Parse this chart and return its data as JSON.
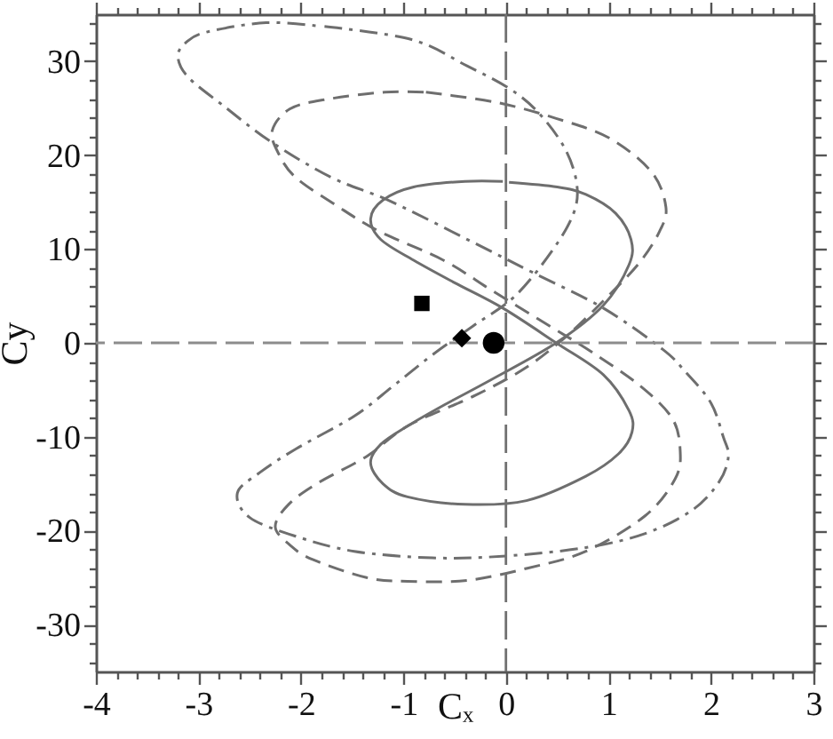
{
  "chart_data": {
    "type": "line",
    "xlabel": "Cₓ",
    "ylabel": "Cy",
    "xlim": [
      -4,
      3
    ],
    "ylim": [
      -35,
      35
    ],
    "xticks": [
      -4,
      {
        "value": -3.8,
        "label": null
      },
      {
        "value": -3.6,
        "label": null
      },
      {
        "value": -3.4,
        "label": null
      },
      {
        "value": -3.2,
        "label": null
      },
      -3,
      {
        "value": -2.8,
        "label": null
      },
      {
        "value": -2.6,
        "label": null
      },
      {
        "value": -2.4,
        "label": null
      },
      {
        "value": -2.2,
        "label": null
      },
      -2,
      {
        "value": -1.8,
        "label": null
      },
      {
        "value": -1.6,
        "label": null
      },
      {
        "value": -1.4,
        "label": null
      },
      {
        "value": -1.2,
        "label": null
      },
      -1,
      {
        "value": -0.8,
        "label": null
      },
      {
        "value": -0.6,
        "label": null
      },
      {
        "value": -0.4,
        "label": null
      },
      {
        "value": -0.2,
        "label": null
      },
      0,
      {
        "value": 0.2,
        "label": null
      },
      {
        "value": 0.4,
        "label": null
      },
      {
        "value": 0.6,
        "label": null
      },
      {
        "value": 0.8,
        "label": null
      },
      1,
      {
        "value": 1.2,
        "label": null
      },
      {
        "value": 1.4,
        "label": null
      },
      {
        "value": 1.6,
        "label": null
      },
      {
        "value": 1.8,
        "label": null
      },
      2,
      {
        "value": 2.2,
        "label": null
      },
      {
        "value": 2.4,
        "label": null
      },
      {
        "value": 2.6,
        "label": null
      },
      {
        "value": 2.8,
        "label": null
      },
      3
    ],
    "yticks": [
      {
        "value": -34,
        "label": null
      },
      {
        "value": -32,
        "label": null
      },
      -30,
      {
        "value": -28,
        "label": null
      },
      {
        "value": -26,
        "label": null
      },
      {
        "value": -24,
        "label": null
      },
      {
        "value": -22,
        "label": null
      },
      -20,
      {
        "value": -18,
        "label": null
      },
      {
        "value": -16,
        "label": null
      },
      {
        "value": -14,
        "label": null
      },
      {
        "value": -12,
        "label": null
      },
      -10,
      {
        "value": -8,
        "label": null
      },
      {
        "value": -6,
        "label": null
      },
      {
        "value": -4,
        "label": null
      },
      {
        "value": -2,
        "label": null
      },
      0,
      {
        "value": 2,
        "label": null
      },
      {
        "value": 4,
        "label": null
      },
      {
        "value": 6,
        "label": null
      },
      {
        "value": 8,
        "label": null
      },
      10,
      {
        "value": 12,
        "label": null
      },
      {
        "value": 14,
        "label": null
      },
      {
        "value": 16,
        "label": null
      },
      {
        "value": 18,
        "label": null
      },
      20,
      {
        "value": 22,
        "label": null
      },
      {
        "value": 24,
        "label": null
      },
      {
        "value": 26,
        "label": null
      },
      {
        "value": 28,
        "label": null
      },
      30,
      {
        "value": 32,
        "label": null
      },
      {
        "value": 34,
        "label": null
      }
    ],
    "series": [
      {
        "color": "#6e6e6e",
        "line_style": "solid",
        "x": [
          0.03,
          0.5,
          0.78,
          1.07,
          1.22,
          1.2,
          0.95,
          0.49,
          -0.14,
          -0.6,
          -0.95,
          -1.22,
          -1.32,
          -1.2,
          -0.96,
          -0.4,
          0.2,
          0.78,
          1.1,
          1.23,
          1.2,
          0.95,
          0.49,
          -0.03,
          -0.5,
          -0.9,
          -1.22,
          -1.32,
          -1.2,
          -0.9,
          -0.4,
          -0.03
        ],
        "values": [
          17.1,
          16.6,
          15.8,
          13.8,
          11.0,
          8.3,
          4.0,
          0,
          -3.9,
          -6.6,
          -8.8,
          -10.8,
          -12.8,
          -15.0,
          -16.4,
          -17.2,
          -16.8,
          -14.2,
          -11.8,
          -9.5,
          -7.2,
          -3.4,
          0,
          3.7,
          6.4,
          8.8,
          11.0,
          13.2,
          15.2,
          16.6,
          17.2,
          17.2
        ]
      },
      {
        "color": "#6e6e6e",
        "line_style": "dashed",
        "x": [
          -0.78,
          -0.09,
          0.49,
          1.01,
          1.42,
          1.56,
          1.5,
          1.3,
          0.98,
          0.6,
          0.2,
          -0.3,
          -0.95,
          -1.36,
          -1.83,
          -2.12,
          -2.25,
          -2.1,
          -1.88,
          -1.36,
          -0.96,
          -0.38,
          0.21,
          0.78,
          1.36,
          1.65,
          1.7,
          1.62,
          1.3,
          0.84,
          0.38,
          -0.14,
          -0.61,
          -1.24,
          -1.65,
          -2.05,
          -2.22,
          -2.28,
          -2.11,
          -1.77,
          -1.18,
          -0.8
        ],
        "values": [
          26.7,
          25.6,
          23.9,
          21.8,
          18.2,
          14.5,
          11.9,
          8.5,
          4.8,
          0.8,
          -2.6,
          -5.6,
          -8.8,
          -12.1,
          -14.9,
          -17.2,
          -19.6,
          -21.6,
          -23.1,
          -25.0,
          -25.4,
          -25.3,
          -24.0,
          -22.2,
          -18.4,
          -14.5,
          -11.5,
          -8.0,
          -4.5,
          -1.0,
          2.1,
          5.6,
          8.8,
          11.9,
          14.6,
          17.6,
          20.2,
          22.6,
          24.9,
          25.9,
          26.7,
          26.7
        ]
      },
      {
        "color": "#6e6e6e",
        "line_style": "dashdot",
        "x": [
          -1.77,
          -0.92,
          -0.38,
          0.03,
          0.31,
          0.57,
          0.69,
          0.66,
          0.45,
          0.09,
          -0.32,
          -0.72,
          -1.1,
          -1.48,
          -2.05,
          -2.4,
          -2.62,
          -2.5,
          -2.05,
          -1.48,
          -0.72,
          0.0,
          0.78,
          1.36,
          1.82,
          2.08,
          2.17,
          2.12,
          2.0,
          1.76,
          1.53,
          0.95,
          0.26,
          -0.32,
          -1.13,
          -1.7,
          -2.29,
          -2.75,
          -3.1,
          -3.2,
          -3.12,
          -2.92,
          -2.34,
          -1.8
        ],
        "values": [
          33.7,
          32.3,
          29.5,
          27.1,
          24.6,
          20.8,
          17.0,
          13.8,
          9.8,
          5.0,
          1.8,
          -1.3,
          -4.6,
          -7.8,
          -11.3,
          -13.8,
          -16.0,
          -18.6,
          -20.6,
          -22.2,
          -22.9,
          -22.7,
          -21.8,
          -20.3,
          -17.8,
          -14.8,
          -12.1,
          -10.0,
          -6.4,
          -3.2,
          -0.7,
          3.7,
          7.5,
          10.7,
          15.1,
          17.6,
          21.4,
          25.2,
          28.3,
          30.5,
          32.0,
          33.1,
          34.1,
          33.7
        ]
      },
      {
        "type": "scatter",
        "color": "#000000",
        "marker": "square",
        "x": [
          -0.82
        ],
        "values": [
          4.2
        ]
      },
      {
        "type": "scatter",
        "color": "#000000",
        "marker": "diamond",
        "x": [
          -0.43
        ],
        "values": [
          0.5
        ]
      },
      {
        "type": "scatter",
        "color": "#000000",
        "marker": "circle",
        "x": [
          -0.12
        ],
        "values": [
          0
        ]
      }
    ],
    "ref_lines": [
      {
        "axis": "x",
        "value": 0,
        "color": "#707070",
        "line_style": "dashed"
      },
      {
        "axis": "y",
        "value": 0,
        "color": "#8c8c8c",
        "line_style": "dashed"
      }
    ]
  }
}
